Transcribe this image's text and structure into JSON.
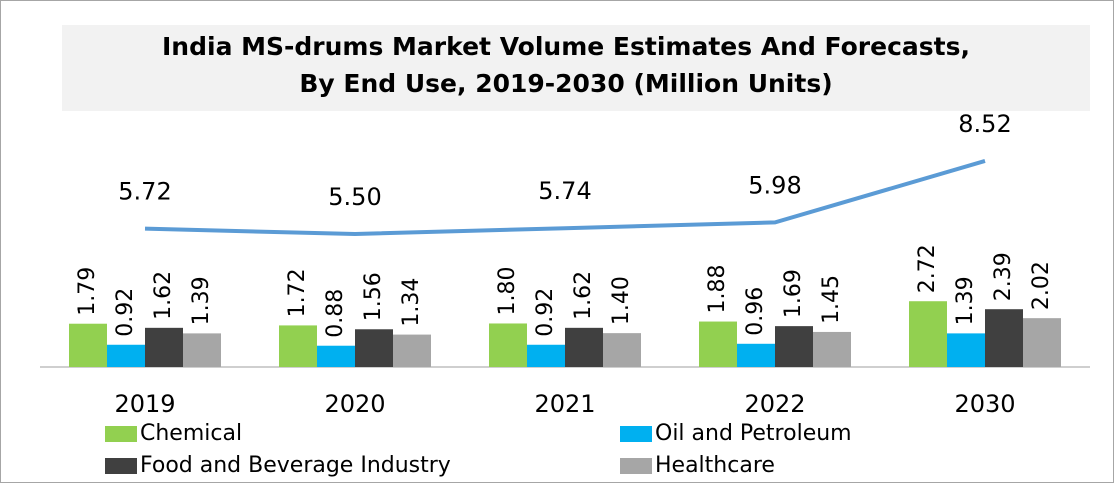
{
  "chart_data": {
    "type": "bar-line",
    "title": [
      "India MS-drums Market Volume Estimates And Forecasts,",
      "By End Use, 2019-2030 (Million Units)"
    ],
    "categories": [
      "2019",
      "2020",
      "2021",
      "2022",
      "2030"
    ],
    "series": [
      {
        "name": "Chemical",
        "color": "#92d050",
        "values": [
          1.79,
          1.72,
          1.8,
          1.88,
          2.72
        ],
        "value_labels": [
          "1.79",
          "1.72",
          "1.80",
          "1.88",
          "2.72"
        ]
      },
      {
        "name": "Oil and Petroleum",
        "color": "#00b0f0",
        "values": [
          0.92,
          0.88,
          0.92,
          0.96,
          1.39
        ],
        "value_labels": [
          "0.92",
          "0.88",
          "0.92",
          "0.96",
          "1.39"
        ]
      },
      {
        "name": "Food and Beverage Industry",
        "color": "#404040",
        "values": [
          1.62,
          1.56,
          1.62,
          1.69,
          2.39
        ],
        "value_labels": [
          "1.62",
          "1.56",
          "1.62",
          "1.69",
          "2.39"
        ]
      },
      {
        "name": "Healthcare",
        "color": "#a6a6a6",
        "values": [
          1.39,
          1.34,
          1.4,
          1.45,
          2.02
        ],
        "value_labels": [
          "1.39",
          "1.34",
          "1.40",
          "1.45",
          "2.02"
        ]
      }
    ],
    "line": {
      "color": "#5b9bd5",
      "values": [
        5.72,
        5.5,
        5.74,
        5.98,
        8.52
      ],
      "value_labels": [
        "5.72",
        "5.50",
        "5.74",
        "5.98",
        "8.52"
      ]
    },
    "ylim": [
      0,
      11
    ]
  }
}
